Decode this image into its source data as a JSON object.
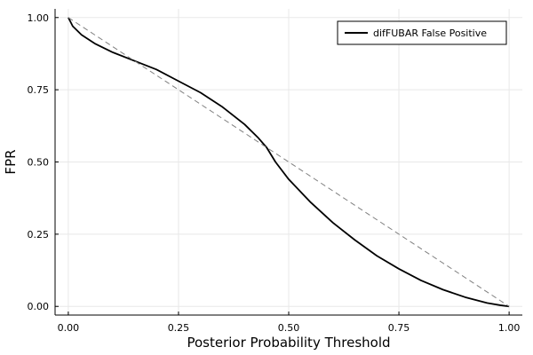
{
  "chart_data": {
    "type": "line",
    "xlabel": "Posterior Probability Threshold",
    "ylabel": "FPR",
    "xlim": [
      -0.03,
      1.03
    ],
    "ylim": [
      -0.03,
      1.03
    ],
    "x_ticks": [
      0.0,
      0.25,
      0.5,
      0.75,
      1.0
    ],
    "x_tick_labels": [
      "0.00",
      "0.25",
      "0.50",
      "0.75",
      "1.00"
    ],
    "y_ticks": [
      0.0,
      0.25,
      0.5,
      0.75,
      1.0
    ],
    "y_tick_labels": [
      "0.00",
      "0.25",
      "0.50",
      "0.75",
      "1.00"
    ],
    "grid": true,
    "legend_position": "top-right",
    "series": [
      {
        "name": "difFUBAR False Positive",
        "color": "#000000",
        "style": "solid",
        "x": [
          0.0,
          0.01,
          0.03,
          0.06,
          0.1,
          0.15,
          0.2,
          0.25,
          0.3,
          0.35,
          0.4,
          0.43,
          0.45,
          0.47,
          0.5,
          0.55,
          0.6,
          0.65,
          0.7,
          0.75,
          0.8,
          0.85,
          0.9,
          0.95,
          0.98,
          1.0
        ],
        "y": [
          1.0,
          0.97,
          0.94,
          0.91,
          0.88,
          0.85,
          0.82,
          0.78,
          0.74,
          0.69,
          0.63,
          0.585,
          0.55,
          0.5,
          0.44,
          0.36,
          0.29,
          0.23,
          0.175,
          0.13,
          0.09,
          0.058,
          0.032,
          0.012,
          0.004,
          0.0
        ]
      },
      {
        "color": "#808080",
        "style": "dashed",
        "x": [
          0.0,
          1.0
        ],
        "y": [
          1.0,
          0.0
        ]
      }
    ]
  }
}
